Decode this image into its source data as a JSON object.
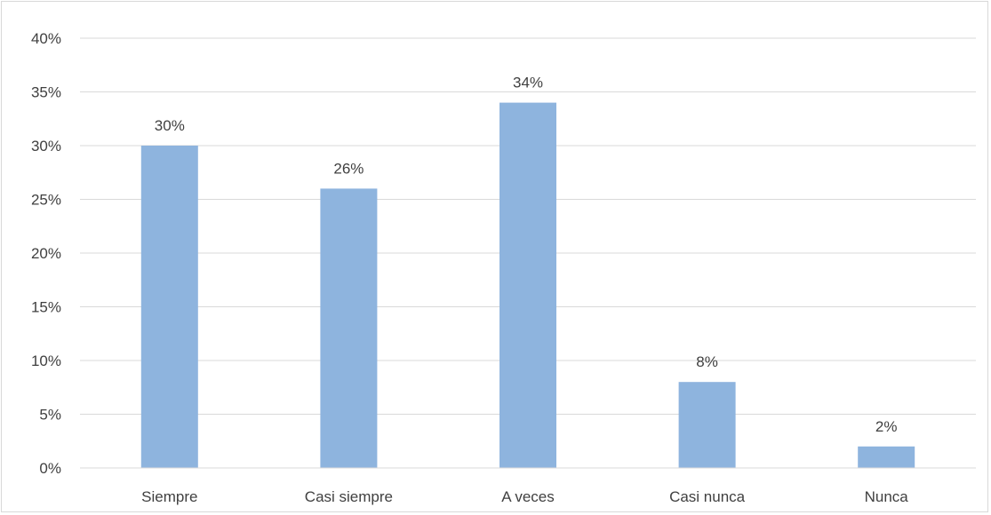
{
  "chart_data": {
    "type": "bar",
    "categories": [
      "Siempre",
      "Casi siempre",
      "A veces",
      "Casi nunca",
      "Nunca"
    ],
    "values": [
      30,
      26,
      34,
      8,
      2
    ],
    "data_labels": [
      "30%",
      "26%",
      "34%",
      "8%",
      "2%"
    ],
    "y_ticks": [
      0,
      5,
      10,
      15,
      20,
      25,
      30,
      35,
      40
    ],
    "y_tick_labels": [
      "0%",
      "5%",
      "10%",
      "15%",
      "20%",
      "25%",
      "30%",
      "35%",
      "40%"
    ],
    "ylim": [
      0,
      40
    ],
    "title": "",
    "xlabel": "",
    "ylabel": "",
    "grid": true,
    "legend": "none",
    "colors": {
      "bar": "#8eb4de",
      "grid": "#d9d9d9",
      "text": "#404040",
      "border": "#d9d9d9"
    }
  }
}
